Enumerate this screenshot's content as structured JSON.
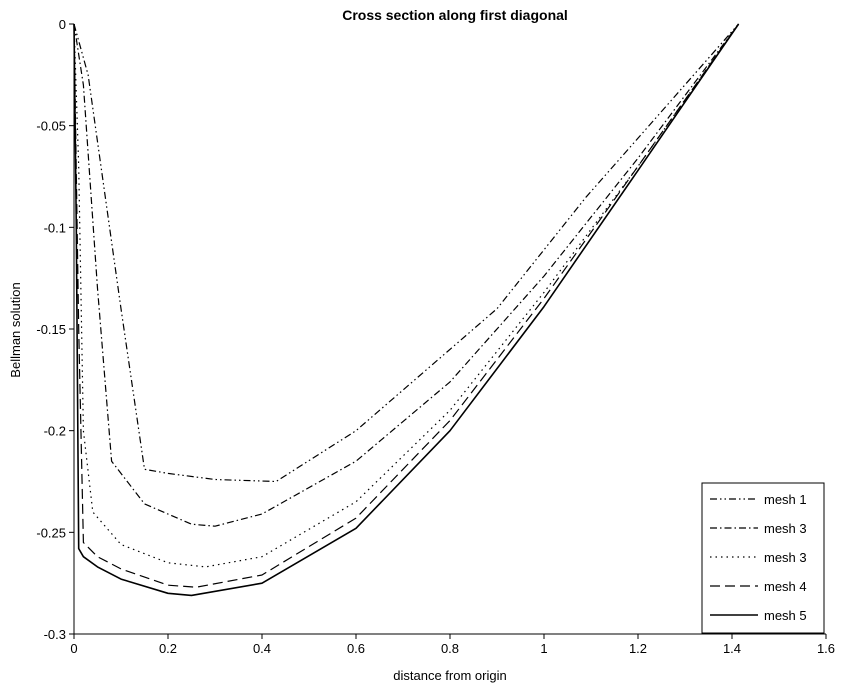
{
  "chart_data": {
    "type": "line",
    "title": "Cross section along first diagonal",
    "xlabel": "distance from origin",
    "ylabel": "Bellman solution",
    "xlim": [
      0,
      1.6
    ],
    "ylim": [
      -0.3,
      0
    ],
    "xticks": [
      "0",
      "0.2",
      "0.4",
      "0.6",
      "0.8",
      "1",
      "1.2",
      "1.4",
      "1.6"
    ],
    "yticks": [
      "0",
      "-0.05",
      "-0.1",
      "-0.15",
      "-0.2",
      "-0.25",
      "-0.3"
    ],
    "grid": false,
    "legend_position": "bottom-right",
    "series": [
      {
        "name": "mesh 1",
        "dash": "dash-dot-dot",
        "x": [
          0,
          0.03,
          0.1,
          0.15,
          0.2,
          0.3,
          0.43,
          0.6,
          0.9,
          1.09,
          1.414
        ],
        "y": [
          0,
          -0.025,
          -0.14,
          -0.219,
          -0.221,
          -0.224,
          -0.225,
          -0.2,
          -0.14,
          -0.085,
          0
        ]
      },
      {
        "name": "mesh 3",
        "dash": "dash-dot",
        "x": [
          0,
          0.02,
          0.05,
          0.08,
          0.15,
          0.25,
          0.3,
          0.4,
          0.6,
          0.8,
          1.0,
          1.2,
          1.414
        ],
        "y": [
          0,
          -0.03,
          -0.13,
          -0.215,
          -0.236,
          -0.246,
          -0.247,
          -0.241,
          -0.215,
          -0.176,
          -0.124,
          -0.066,
          0
        ]
      },
      {
        "name": "mesh 3",
        "dash": "dotted",
        "x": [
          0,
          0.01,
          0.02,
          0.04,
          0.1,
          0.2,
          0.28,
          0.4,
          0.6,
          0.8,
          1.0,
          1.2,
          1.414
        ],
        "y": [
          0,
          -0.07,
          -0.2,
          -0.24,
          -0.256,
          -0.265,
          -0.267,
          -0.262,
          -0.235,
          -0.19,
          -0.132,
          -0.07,
          0
        ]
      },
      {
        "name": "mesh 4",
        "dash": "dashed",
        "x": [
          0,
          0.01,
          0.02,
          0.05,
          0.1,
          0.2,
          0.26,
          0.4,
          0.6,
          0.8,
          1.0,
          1.2,
          1.414
        ],
        "y": [
          0,
          -0.15,
          -0.255,
          -0.262,
          -0.268,
          -0.276,
          -0.277,
          -0.271,
          -0.243,
          -0.195,
          -0.135,
          -0.07,
          0
        ]
      },
      {
        "name": "mesh 5",
        "dash": "solid",
        "x": [
          0,
          0.005,
          0.01,
          0.02,
          0.05,
          0.1,
          0.2,
          0.25,
          0.4,
          0.6,
          0.8,
          1.0,
          1.2,
          1.414
        ],
        "y": [
          0,
          -0.1,
          -0.258,
          -0.262,
          -0.267,
          -0.273,
          -0.28,
          -0.281,
          -0.275,
          -0.248,
          -0.2,
          -0.139,
          -0.072,
          0
        ]
      }
    ]
  }
}
